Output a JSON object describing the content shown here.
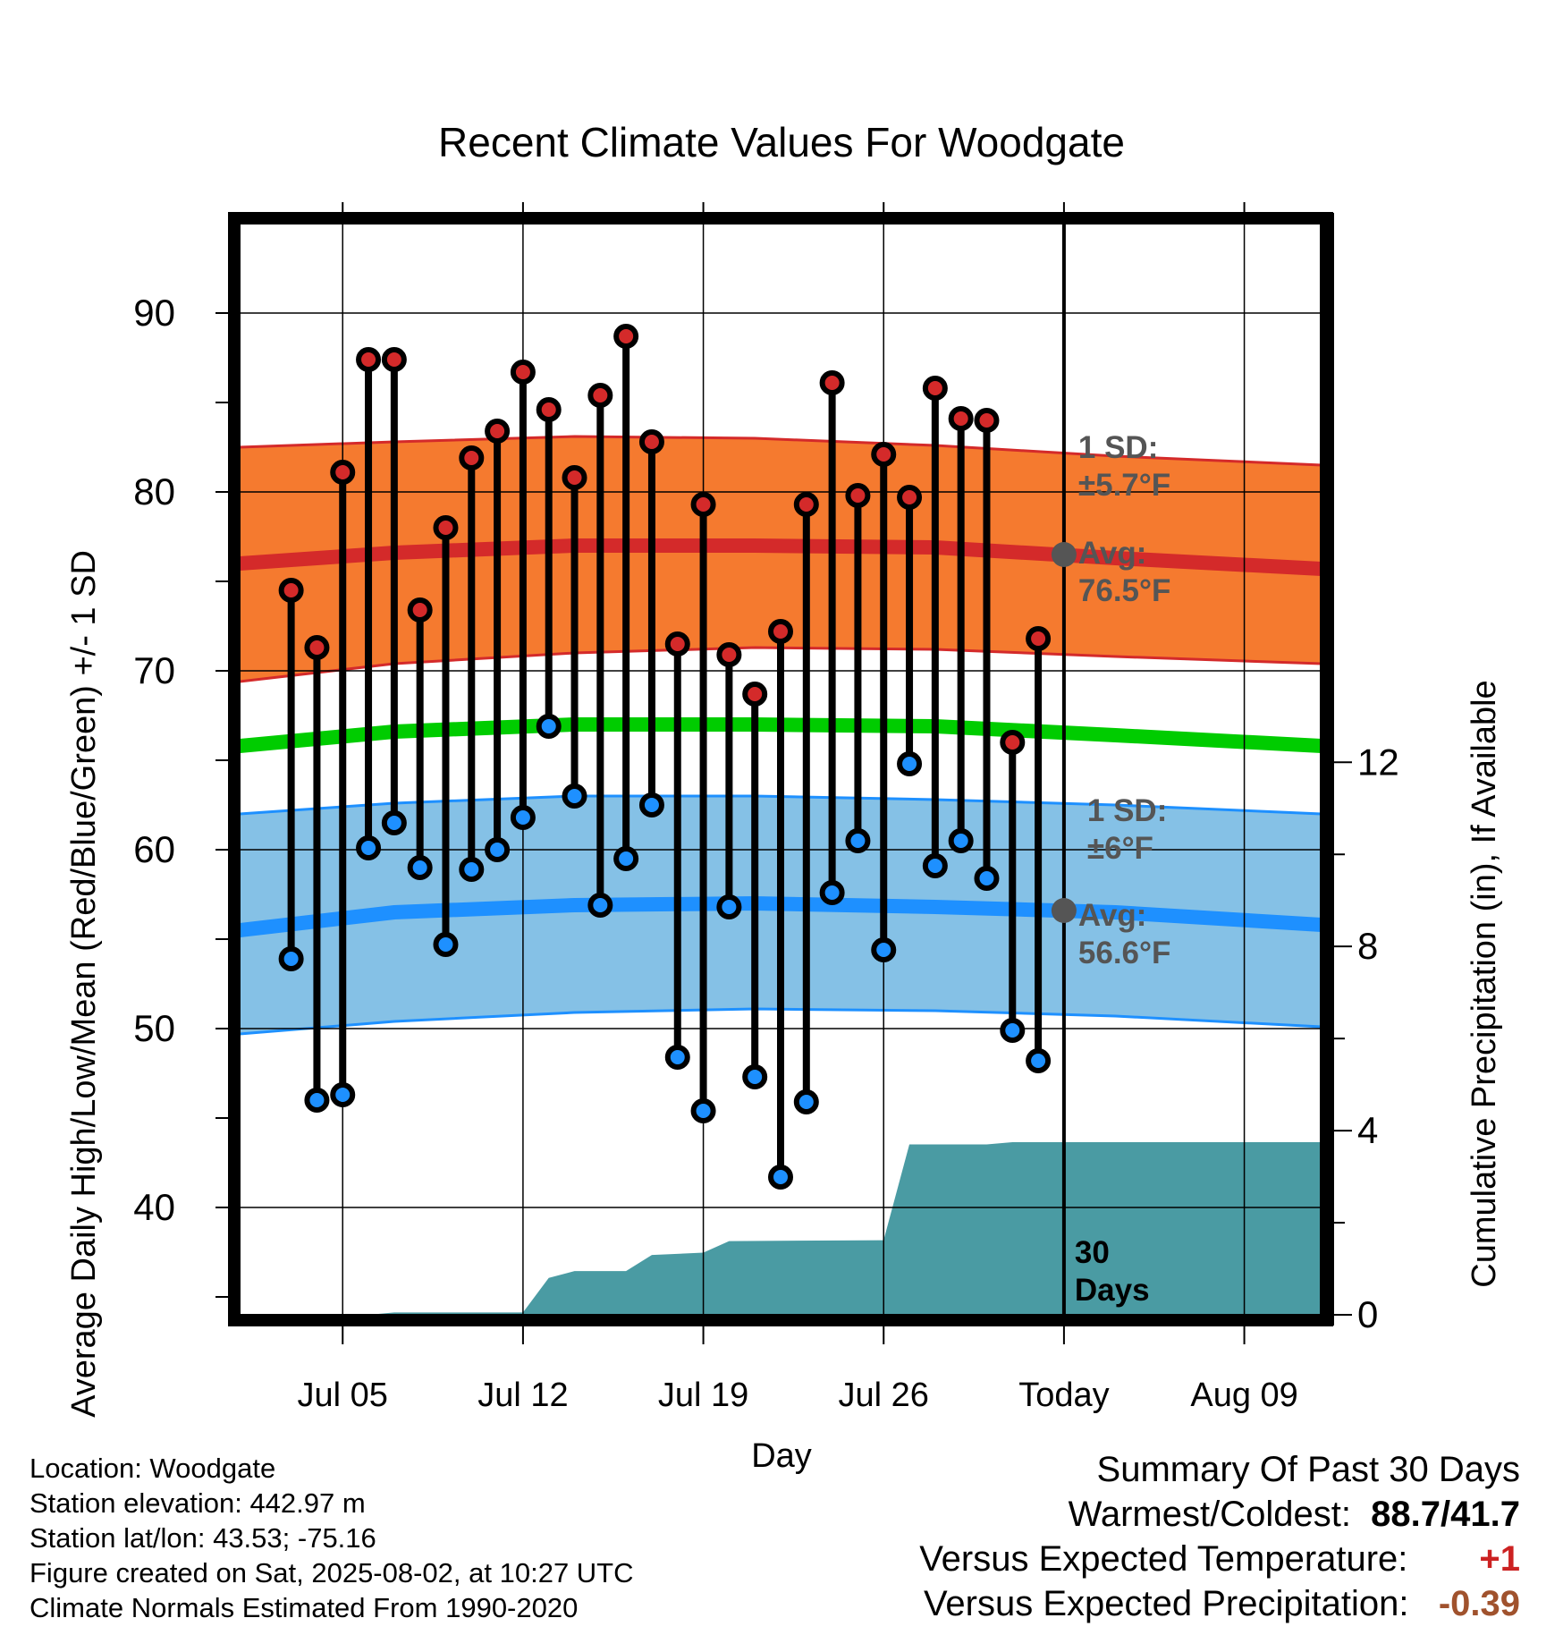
{
  "chart_data": {
    "type": "line",
    "title": "Recent Climate Values For Woodgate",
    "xlabel": "Day",
    "ylabel": "Average Daily High/Low/Mean (Red/Blue/Green) +/- 1 SD",
    "y2label": "Cumulative Precipitation (in), If Available",
    "x_tick_labels": [
      "Jul 05",
      "Jul 12",
      "Jul 19",
      "Jul 26",
      "Today",
      "Aug 09"
    ],
    "y_ticks": [
      40,
      50,
      60,
      70,
      80,
      90
    ],
    "y2_ticks": [
      0,
      4,
      8,
      12
    ],
    "ylim": [
      34,
      95
    ],
    "y2lim": [
      0,
      23.7
    ],
    "xlim": [
      "2025-07-01",
      "2025-08-12"
    ],
    "today": "2025-08-02",
    "grid": true,
    "days": [
      "2025-07-03",
      "2025-07-04",
      "2025-07-05",
      "2025-07-06",
      "2025-07-07",
      "2025-07-08",
      "2025-07-09",
      "2025-07-10",
      "2025-07-11",
      "2025-07-12",
      "2025-07-13",
      "2025-07-14",
      "2025-07-15",
      "2025-07-16",
      "2025-07-17",
      "2025-07-18",
      "2025-07-19",
      "2025-07-20",
      "2025-07-21",
      "2025-07-22",
      "2025-07-23",
      "2025-07-24",
      "2025-07-25",
      "2025-07-26",
      "2025-07-27",
      "2025-07-28",
      "2025-07-29",
      "2025-07-30",
      "2025-07-31",
      "2025-08-01"
    ],
    "highs": [
      74.5,
      71.3,
      81.1,
      87.4,
      87.4,
      73.4,
      78.0,
      81.9,
      83.4,
      86.7,
      84.6,
      80.8,
      85.4,
      88.7,
      82.8,
      71.5,
      79.3,
      70.9,
      68.7,
      72.2,
      79.3,
      86.1,
      79.8,
      82.1,
      79.7,
      85.8,
      84.1,
      84.0,
      66.0,
      71.8
    ],
    "lows": [
      53.9,
      46.0,
      46.3,
      60.1,
      61.5,
      59.0,
      54.7,
      58.9,
      60.0,
      61.8,
      66.9,
      63.0,
      56.9,
      59.5,
      62.5,
      48.4,
      45.4,
      56.8,
      47.3,
      41.7,
      45.9,
      57.6,
      60.5,
      54.4,
      64.8,
      59.1,
      60.5,
      58.4,
      49.9,
      48.2
    ],
    "normals_days": [
      "2025-07-01",
      "2025-07-07",
      "2025-07-14",
      "2025-07-21",
      "2025-07-28",
      "2025-08-04",
      "2025-08-12"
    ],
    "normal_high": [
      76.0,
      76.6,
      77.0,
      77.0,
      76.9,
      76.3,
      75.7
    ],
    "normal_high_upper": [
      82.5,
      82.8,
      83.1,
      83.0,
      82.6,
      82.0,
      81.5
    ],
    "normal_high_lower": [
      69.4,
      70.4,
      71.0,
      71.3,
      71.2,
      70.8,
      70.4
    ],
    "normal_mean": [
      65.8,
      66.6,
      67.0,
      67.0,
      66.9,
      66.4,
      65.8
    ],
    "normal_low": [
      55.5,
      56.5,
      56.9,
      57.0,
      56.8,
      56.5,
      55.8
    ],
    "normal_low_upper": [
      62.0,
      62.6,
      63.0,
      63.0,
      62.8,
      62.5,
      62.0
    ],
    "normal_low_lower": [
      49.7,
      50.4,
      50.9,
      51.1,
      51.0,
      50.7,
      50.1
    ],
    "precip_cumulative": [
      {
        "date": "2025-07-01",
        "value": 0.0
      },
      {
        "date": "2025-07-06",
        "value": 0.0
      },
      {
        "date": "2025-07-07",
        "value": 0.05
      },
      {
        "date": "2025-07-12",
        "value": 0.05
      },
      {
        "date": "2025-07-13",
        "value": 0.8
      },
      {
        "date": "2025-07-14",
        "value": 0.95
      },
      {
        "date": "2025-07-16",
        "value": 0.95
      },
      {
        "date": "2025-07-17",
        "value": 1.3
      },
      {
        "date": "2025-07-19",
        "value": 1.35
      },
      {
        "date": "2025-07-20",
        "value": 1.6
      },
      {
        "date": "2025-07-26",
        "value": 1.62
      },
      {
        "date": "2025-07-27",
        "value": 3.7
      },
      {
        "date": "2025-07-30",
        "value": 3.7
      },
      {
        "date": "2025-07-31",
        "value": 3.75
      },
      {
        "date": "2025-08-12",
        "value": 3.75
      }
    ],
    "annotations": {
      "high_sd": "1 SD:\n±5.7°F",
      "high_avg": "Avg:\n76.5°F",
      "high_avg_value": 76.5,
      "low_sd": "1 SD:\n±6°F",
      "low_avg": "Avg:\n56.6°F",
      "low_avg_value": 56.6,
      "days_label": "30\nDays"
    },
    "colors": {
      "high_band": "#f57a2f",
      "high_line": "#d42a2a",
      "mean_line": "#00cc00",
      "low_band": "#85c1e6",
      "low_line": "#1e90ff",
      "precip": "#4a9ba3",
      "high_dot": "#d42a2a",
      "low_dot": "#1e90ff",
      "annotation_text": "#555555"
    }
  },
  "footer": {
    "location": "Location: Woodgate",
    "elevation": "Station elevation: 442.97 m",
    "latlon": "Station lat/lon: 43.53; -75.16",
    "created": "Figure created on Sat, 2025-08-02, at 10:27 UTC",
    "normals": "Climate Normals Estimated From 1990-2020"
  },
  "summary": {
    "title": "Summary Of Past 30 Days",
    "warm_cold_label": "Warmest/Coldest:",
    "warm_cold_value": "88.7/41.7",
    "temp_label": "Versus Expected Temperature:",
    "temp_value": "+1",
    "temp_color": "#cc2222",
    "precip_label": "Versus Expected Precipitation:",
    "precip_value": "-0.39",
    "precip_color": "#a0522d"
  }
}
